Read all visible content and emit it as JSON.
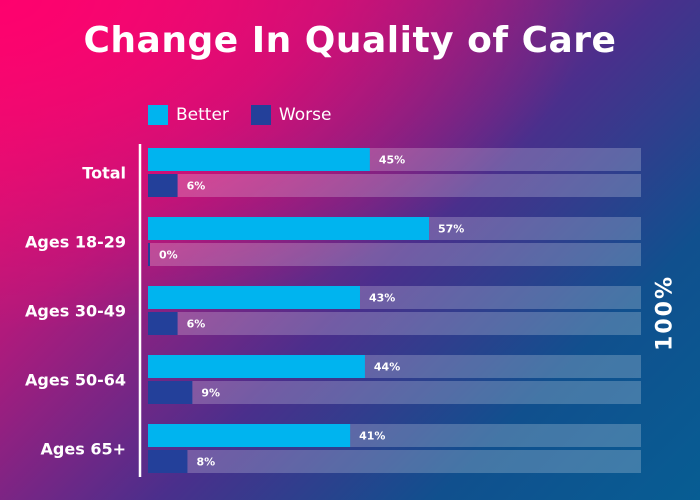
{
  "chart_data": {
    "type": "bar",
    "orientation": "horizontal",
    "title": "Change In Quality of Care",
    "categories": [
      "Total",
      "Ages 18-29",
      "Ages 30-49",
      "Ages 50-64",
      "Ages 65+"
    ],
    "series": [
      {
        "name": "Better",
        "values": [
          45,
          57,
          43,
          44,
          41
        ],
        "labels": [
          "45%",
          "57%",
          "43%",
          "44%",
          "41%"
        ],
        "color": "#00b4ef"
      },
      {
        "name": "Worse",
        "values": [
          6,
          0,
          6,
          9,
          8
        ],
        "labels": [
          "6%",
          "0%",
          "6%",
          "9%",
          "8%"
        ],
        "color": "#23409a"
      }
    ],
    "xlim": [
      0,
      100
    ],
    "side_label": "100%",
    "legend_position": "top-left",
    "track_color": "rgba(255,255,255,0.22)"
  }
}
